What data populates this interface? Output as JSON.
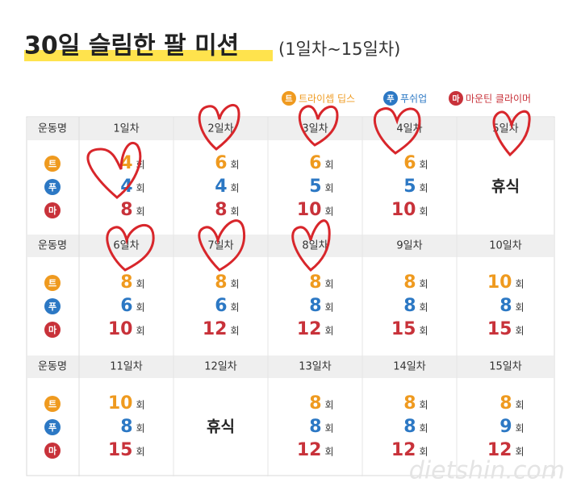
{
  "header": {
    "title": "30일 슬림한 팔 미션",
    "subtitle": "(1일차~15일차)"
  },
  "legend": [
    {
      "icon": "트",
      "label": "트라이셉 딥스",
      "color": "#ef9a1f"
    },
    {
      "icon": "푸",
      "label": "푸쉬업",
      "color": "#2c78c4"
    },
    {
      "icon": "마",
      "label": "마운틴 클라이머",
      "color": "#c8323a"
    }
  ],
  "table": {
    "row_header": "운동명",
    "unit": "회",
    "blocks": [
      {
        "days": [
          "1일차",
          "2일차",
          "3일차",
          "4일차",
          "5일차"
        ],
        "cells": [
          [
            4,
            4,
            8
          ],
          [
            6,
            4,
            8
          ],
          [
            6,
            5,
            10
          ],
          [
            6,
            5,
            10
          ],
          "휴식"
        ]
      },
      {
        "days": [
          "6일차",
          "7일차",
          "8일차",
          "9일차",
          "10일차"
        ],
        "cells": [
          [
            8,
            6,
            10
          ],
          [
            8,
            6,
            12
          ],
          [
            8,
            8,
            12
          ],
          [
            8,
            8,
            15
          ],
          [
            10,
            8,
            15
          ]
        ]
      },
      {
        "days": [
          "11일차",
          "12일차",
          "13일차",
          "14일차",
          "15일차"
        ],
        "cells": [
          [
            10,
            8,
            15
          ],
          "휴식",
          [
            8,
            8,
            12
          ],
          [
            8,
            8,
            12
          ],
          [
            8,
            9,
            12
          ]
        ]
      }
    ]
  },
  "watermark": "dietshin.com"
}
